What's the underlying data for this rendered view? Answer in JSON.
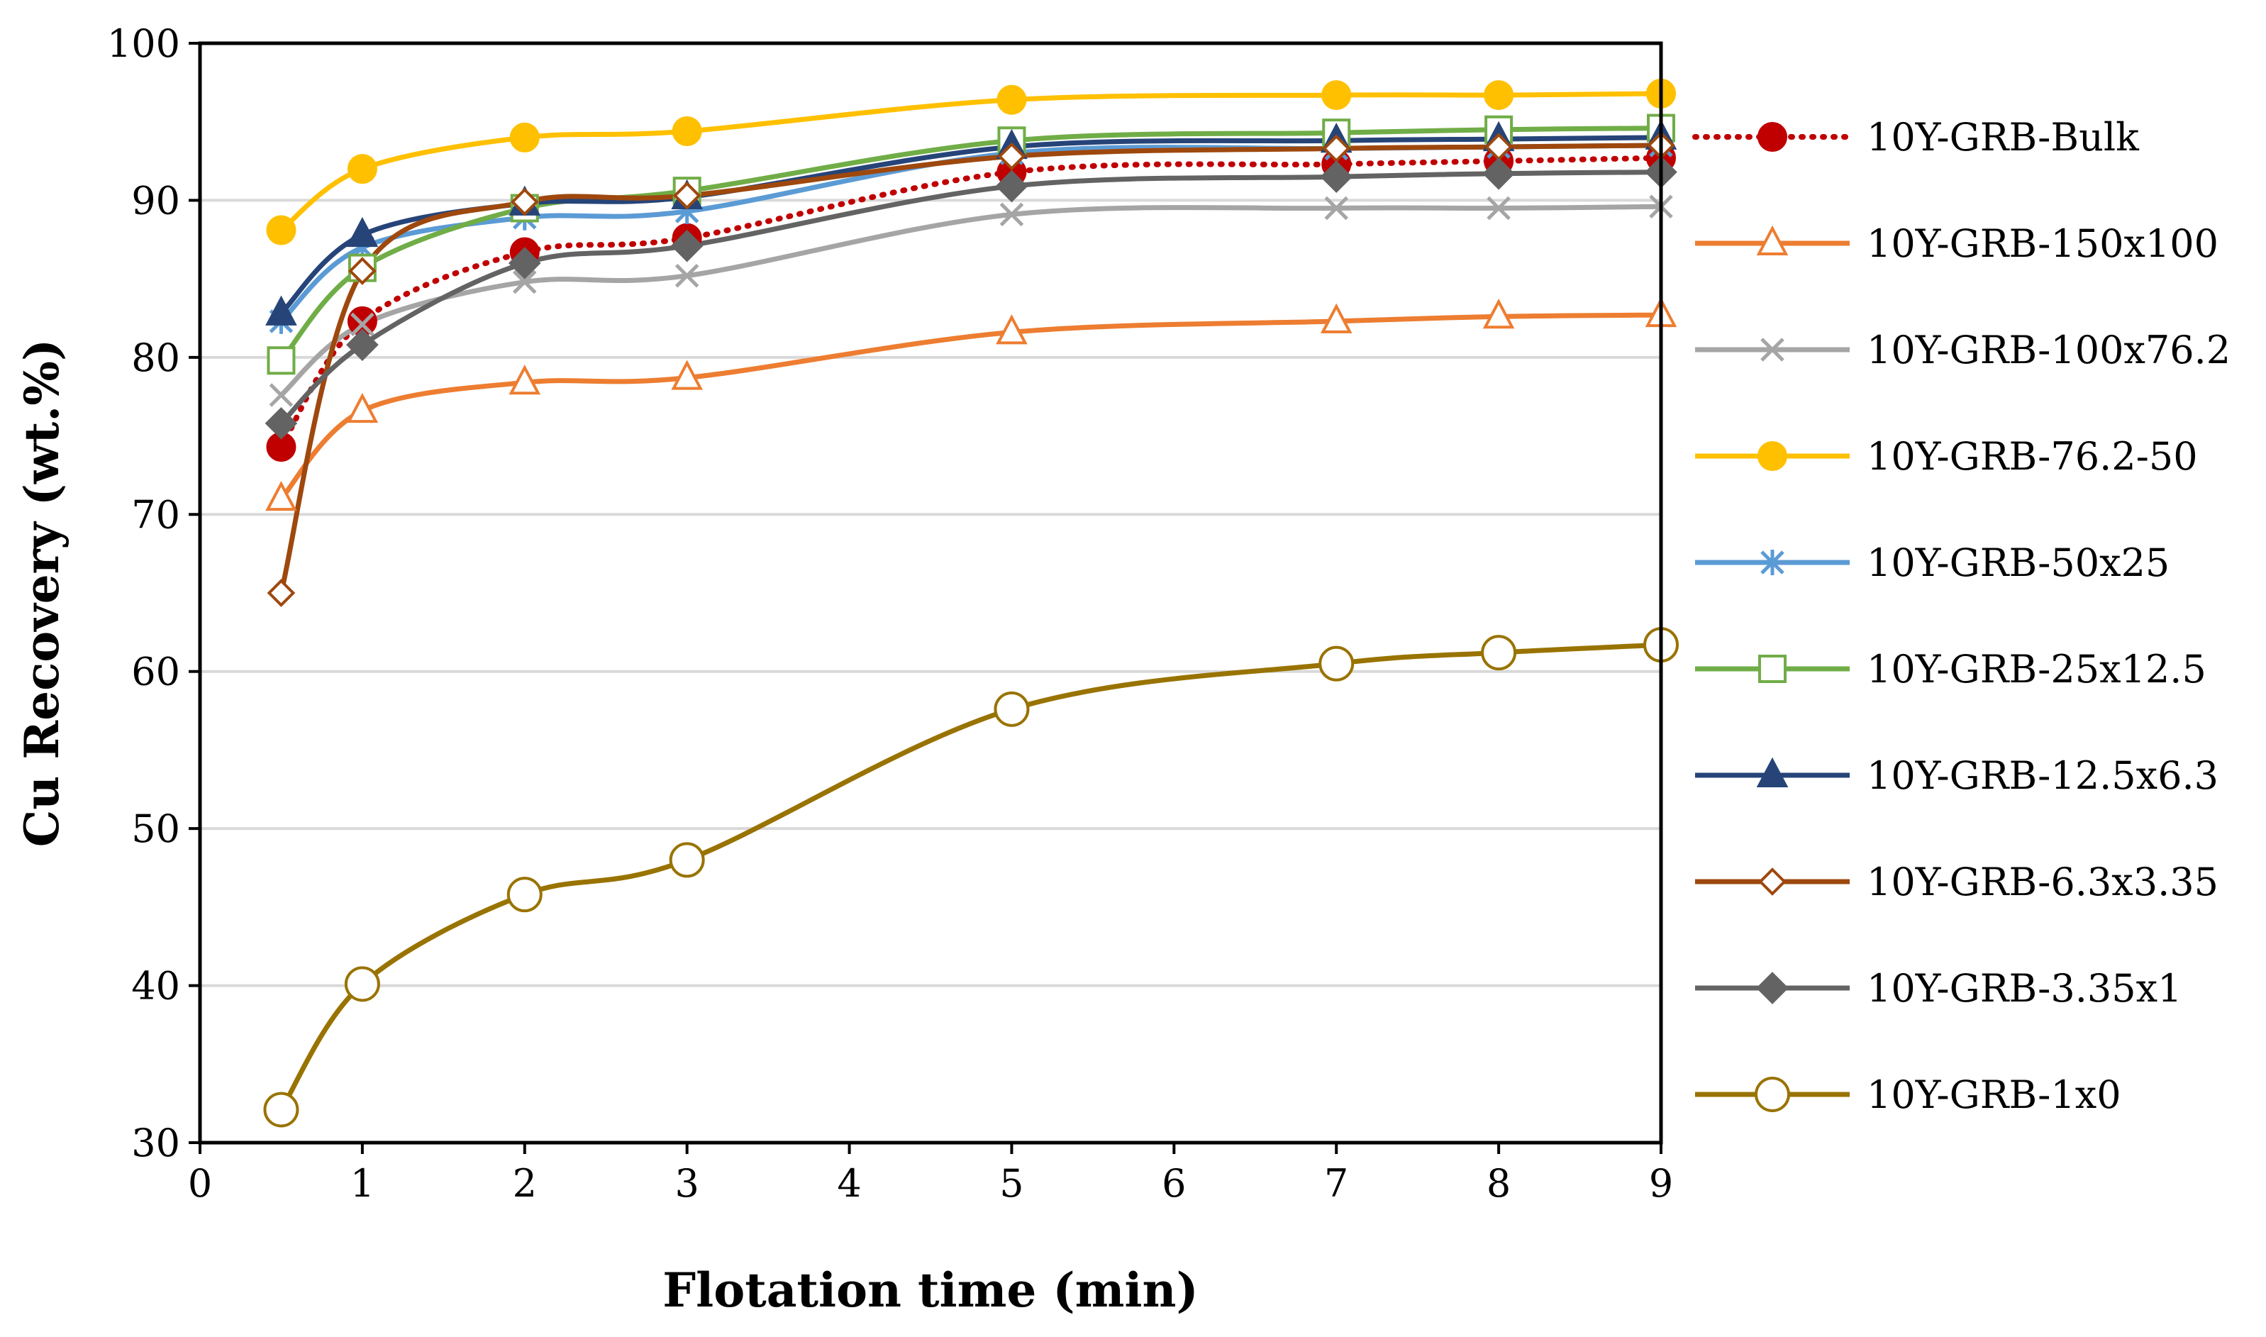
{
  "chart_data": {
    "type": "line",
    "title": "",
    "xlabel": "Flotation time (min)",
    "ylabel": "Cu Recovery (wt.%)",
    "xlim": [
      0,
      9
    ],
    "ylim": [
      30,
      100
    ],
    "xticks": [
      0,
      1,
      2,
      3,
      4,
      5,
      6,
      7,
      8,
      9
    ],
    "yticks": [
      30,
      40,
      50,
      60,
      70,
      80,
      90,
      100
    ],
    "grid": "horizontal",
    "legend": "right",
    "x": [
      0.5,
      1,
      2,
      3,
      5,
      7,
      8,
      9
    ],
    "series": [
      {
        "name": "10Y-GRB-Bulk",
        "color": "#c00000",
        "dash": "dotted",
        "marker": "circle",
        "filled": true,
        "values": [
          74.3,
          82.3,
          86.7,
          87.6,
          91.8,
          92.3,
          92.5,
          92.7
        ]
      },
      {
        "name": "10Y-GRB-150x100",
        "color": "#ed7d31",
        "dash": "solid",
        "marker": "triangle",
        "filled": false,
        "values": [
          71.0,
          76.6,
          78.4,
          78.7,
          81.6,
          82.3,
          82.6,
          82.7
        ]
      },
      {
        "name": "10Y-GRB-100x76.2",
        "color": "#a5a5a5",
        "dash": "solid",
        "marker": "x",
        "filled": false,
        "values": [
          77.6,
          82.1,
          84.8,
          85.2,
          89.1,
          89.5,
          89.5,
          89.6
        ]
      },
      {
        "name": "10Y-GRB-76.2-50",
        "color": "#ffc000",
        "dash": "solid",
        "marker": "circle",
        "filled": true,
        "values": [
          88.1,
          92.0,
          94.0,
          94.4,
          96.4,
          96.7,
          96.7,
          96.8
        ]
      },
      {
        "name": "10Y-GRB-50x25",
        "color": "#5b9bd5",
        "dash": "solid",
        "marker": "asterisk",
        "filled": false,
        "values": [
          82.3,
          87.0,
          88.9,
          89.3,
          93.0,
          93.3,
          93.4,
          93.5
        ]
      },
      {
        "name": "10Y-GRB-25x12.5",
        "color": "#70ad47",
        "dash": "solid",
        "marker": "square",
        "filled": false,
        "values": [
          79.8,
          85.7,
          89.5,
          90.6,
          93.8,
          94.3,
          94.5,
          94.6
        ]
      },
      {
        "name": "10Y-GRB-12.5x6.3",
        "color": "#264478",
        "dash": "solid",
        "marker": "triangle",
        "filled": true,
        "values": [
          82.8,
          87.8,
          89.8,
          90.2,
          93.4,
          93.8,
          93.9,
          94.0
        ]
      },
      {
        "name": "10Y-GRB-6.3x3.35",
        "color": "#9e480e",
        "dash": "solid",
        "marker": "diamond",
        "filled": false,
        "values": [
          65.0,
          85.5,
          89.9,
          90.3,
          92.8,
          93.3,
          93.4,
          93.5
        ]
      },
      {
        "name": "10Y-GRB-3.35x1",
        "color": "#636363",
        "dash": "solid",
        "marker": "diamond",
        "filled": true,
        "values": [
          75.8,
          80.8,
          86.0,
          87.1,
          90.9,
          91.5,
          91.7,
          91.8
        ]
      },
      {
        "name": "10Y-GRB-1x0",
        "color": "#997300",
        "dash": "solid",
        "marker": "circle",
        "filled": false,
        "values": [
          32.1,
          40.1,
          45.8,
          48.0,
          57.6,
          60.5,
          61.2,
          61.7
        ]
      }
    ]
  }
}
